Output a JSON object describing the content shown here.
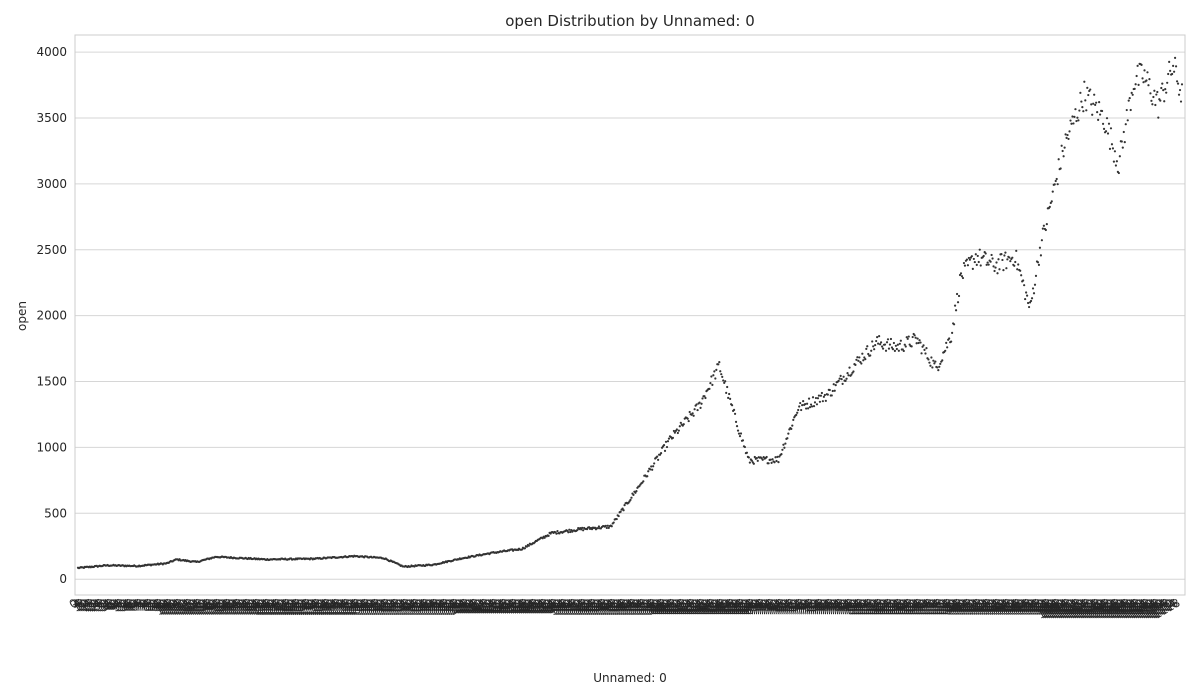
{
  "chart_data": {
    "type": "scatter",
    "title": "open Distribution by Unnamed: 0",
    "xlabel": "Unnamed: 0",
    "ylabel": "open",
    "ylim": [
      -120,
      4130
    ],
    "yticks": [
      0,
      500,
      1000,
      1500,
      2000,
      2500,
      3000,
      3500,
      4000
    ],
    "grid": true,
    "point_count": 1120,
    "x_tick_labels_overlap": true,
    "keypoints": [
      [
        0,
        85
      ],
      [
        30,
        105
      ],
      [
        60,
        100
      ],
      [
        90,
        120
      ],
      [
        100,
        150
      ],
      [
        120,
        130
      ],
      [
        140,
        170
      ],
      [
        190,
        150
      ],
      [
        240,
        155
      ],
      [
        280,
        175
      ],
      [
        310,
        160
      ],
      [
        330,
        95
      ],
      [
        360,
        110
      ],
      [
        390,
        160
      ],
      [
        420,
        200
      ],
      [
        450,
        230
      ],
      [
        480,
        350
      ],
      [
        510,
        380
      ],
      [
        540,
        400
      ],
      [
        570,
        720
      ],
      [
        600,
        1060
      ],
      [
        630,
        1320
      ],
      [
        650,
        1620
      ],
      [
        665,
        1250
      ],
      [
        680,
        900
      ],
      [
        710,
        910
      ],
      [
        730,
        1300
      ],
      [
        760,
        1400
      ],
      [
        790,
        1650
      ],
      [
        810,
        1800
      ],
      [
        830,
        1760
      ],
      [
        850,
        1820
      ],
      [
        870,
        1600
      ],
      [
        885,
        1850
      ],
      [
        895,
        2300
      ],
      [
        910,
        2450
      ],
      [
        930,
        2380
      ],
      [
        950,
        2450
      ],
      [
        965,
        2050
      ],
      [
        975,
        2500
      ],
      [
        1000,
        3300
      ],
      [
        1020,
        3680
      ],
      [
        1040,
        3500
      ],
      [
        1055,
        3150
      ],
      [
        1070,
        3780
      ],
      [
        1080,
        3820
      ],
      [
        1095,
        3600
      ],
      [
        1110,
        3900
      ],
      [
        1120,
        3650
      ]
    ]
  }
}
